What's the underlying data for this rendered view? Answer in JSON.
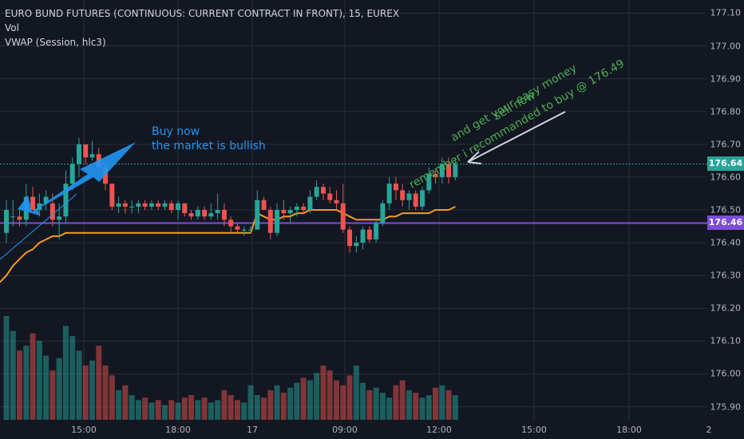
{
  "legend": {
    "symbol": "EURO BUND FUTURES (CONTINUOUS: CURRENT CONTRACT IN FRONT), 15, EUREX",
    "vol": "Vol",
    "vwap": "VWAP (Session, hlc3)"
  },
  "price_axis": {
    "ticks": [
      "177.10",
      "177.00",
      "176.90",
      "176.80",
      "176.70",
      "176.60",
      "176.50",
      "176.40",
      "176.30",
      "176.20",
      "176.10",
      "176.00",
      "175.90"
    ],
    "current_price_label": "176.64",
    "horizontal_line_label": "176.46"
  },
  "time_axis": {
    "ticks": [
      "15:00",
      "18:00",
      "17",
      "09:00",
      "12:00",
      "15:00",
      "18:00",
      "2"
    ]
  },
  "annotations": {
    "buy_line1": "Buy now",
    "buy_line2": "the market is bullish",
    "sell_line1": "sell now",
    "sell_line2": "and get your easy money",
    "sell_line3": "remember i recommanded to buy @ 176.49"
  },
  "colors": {
    "background": "#131722",
    "up": "#26a69a",
    "down": "#ef5350",
    "vwap": "#f59a23",
    "hline": "#7b4dd8",
    "current_price": "#26a69a",
    "annotation_blue": "#2196f3",
    "annotation_green": "#4caf50",
    "arrow_white": "#d1d4dc"
  },
  "chart_data": {
    "type": "candlestick",
    "title": "EURO BUND FUTURES (CONTINUOUS: CURRENT CONTRACT IN FRONT), 15, EUREX",
    "ylim": [
      175.86,
      177.14
    ],
    "horizontal_line": 176.46,
    "last_price": 176.64,
    "candles": [
      {
        "o": 176.43,
        "h": 176.53,
        "l": 176.4,
        "c": 176.5
      },
      {
        "o": 176.48,
        "h": 176.53,
        "l": 176.45,
        "c": 176.48
      },
      {
        "o": 176.48,
        "h": 176.5,
        "l": 176.45,
        "c": 176.47
      },
      {
        "o": 176.47,
        "h": 176.58,
        "l": 176.45,
        "c": 176.54
      },
      {
        "o": 176.54,
        "h": 176.57,
        "l": 176.5,
        "c": 176.5
      },
      {
        "o": 176.5,
        "h": 176.55,
        "l": 176.48,
        "c": 176.52
      },
      {
        "o": 176.52,
        "h": 176.56,
        "l": 176.5,
        "c": 176.54
      },
      {
        "o": 176.52,
        "h": 176.55,
        "l": 176.45,
        "c": 176.47
      },
      {
        "o": 176.47,
        "h": 176.52,
        "l": 176.41,
        "c": 176.48
      },
      {
        "o": 176.48,
        "h": 176.62,
        "l": 176.46,
        "c": 176.58
      },
      {
        "o": 176.58,
        "h": 176.66,
        "l": 176.56,
        "c": 176.64
      },
      {
        "o": 176.64,
        "h": 176.72,
        "l": 176.6,
        "c": 176.7
      },
      {
        "o": 176.7,
        "h": 176.7,
        "l": 176.64,
        "c": 176.66
      },
      {
        "o": 176.66,
        "h": 176.71,
        "l": 176.65,
        "c": 176.67
      },
      {
        "o": 176.67,
        "h": 176.69,
        "l": 176.62,
        "c": 176.63
      },
      {
        "o": 176.63,
        "h": 176.64,
        "l": 176.56,
        "c": 176.58
      },
      {
        "o": 176.58,
        "h": 176.58,
        "l": 176.5,
        "c": 176.51
      },
      {
        "o": 176.51,
        "h": 176.54,
        "l": 176.49,
        "c": 176.52
      },
      {
        "o": 176.52,
        "h": 176.53,
        "l": 176.49,
        "c": 176.51
      },
      {
        "o": 176.51,
        "h": 176.53,
        "l": 176.49,
        "c": 176.51
      },
      {
        "o": 176.51,
        "h": 176.53,
        "l": 176.49,
        "c": 176.52
      },
      {
        "o": 176.52,
        "h": 176.53,
        "l": 176.5,
        "c": 176.51
      },
      {
        "o": 176.51,
        "h": 176.53,
        "l": 176.5,
        "c": 176.52
      },
      {
        "o": 176.52,
        "h": 176.53,
        "l": 176.5,
        "c": 176.51
      },
      {
        "o": 176.51,
        "h": 176.53,
        "l": 176.5,
        "c": 176.52
      },
      {
        "o": 176.52,
        "h": 176.53,
        "l": 176.49,
        "c": 176.5
      },
      {
        "o": 176.5,
        "h": 176.53,
        "l": 176.47,
        "c": 176.52
      },
      {
        "o": 176.52,
        "h": 176.52,
        "l": 176.48,
        "c": 176.49
      },
      {
        "o": 176.49,
        "h": 176.5,
        "l": 176.47,
        "c": 176.48
      },
      {
        "o": 176.48,
        "h": 176.51,
        "l": 176.47,
        "c": 176.5
      },
      {
        "o": 176.5,
        "h": 176.51,
        "l": 176.47,
        "c": 176.48
      },
      {
        "o": 176.48,
        "h": 176.52,
        "l": 176.47,
        "c": 176.49
      },
      {
        "o": 176.49,
        "h": 176.55,
        "l": 176.47,
        "c": 176.5
      },
      {
        "o": 176.5,
        "h": 176.52,
        "l": 176.45,
        "c": 176.47
      },
      {
        "o": 176.47,
        "h": 176.48,
        "l": 176.43,
        "c": 176.45
      },
      {
        "o": 176.45,
        "h": 176.46,
        "l": 176.43,
        "c": 176.44
      },
      {
        "o": 176.44,
        "h": 176.45,
        "l": 176.42,
        "c": 176.44
      },
      {
        "o": 176.44,
        "h": 176.45,
        "l": 176.43,
        "c": 176.44
      },
      {
        "o": 176.44,
        "h": 176.56,
        "l": 176.44,
        "c": 176.53
      },
      {
        "o": 176.53,
        "h": 176.54,
        "l": 176.5,
        "c": 176.5
      },
      {
        "o": 176.5,
        "h": 176.51,
        "l": 176.41,
        "c": 176.43
      },
      {
        "o": 176.43,
        "h": 176.52,
        "l": 176.42,
        "c": 176.5
      },
      {
        "o": 176.5,
        "h": 176.53,
        "l": 176.47,
        "c": 176.49
      },
      {
        "o": 176.49,
        "h": 176.51,
        "l": 176.46,
        "c": 176.5
      },
      {
        "o": 176.5,
        "h": 176.52,
        "l": 176.48,
        "c": 176.51
      },
      {
        "o": 176.51,
        "h": 176.52,
        "l": 176.49,
        "c": 176.5
      },
      {
        "o": 176.5,
        "h": 176.56,
        "l": 176.49,
        "c": 176.54
      },
      {
        "o": 176.54,
        "h": 176.59,
        "l": 176.53,
        "c": 176.57
      },
      {
        "o": 176.57,
        "h": 176.58,
        "l": 176.53,
        "c": 176.55
      },
      {
        "o": 176.55,
        "h": 176.57,
        "l": 176.52,
        "c": 176.53
      },
      {
        "o": 176.53,
        "h": 176.56,
        "l": 176.5,
        "c": 176.52
      },
      {
        "o": 176.52,
        "h": 176.58,
        "l": 176.43,
        "c": 176.44
      },
      {
        "o": 176.44,
        "h": 176.45,
        "l": 176.37,
        "c": 176.39
      },
      {
        "o": 176.39,
        "h": 176.42,
        "l": 176.37,
        "c": 176.4
      },
      {
        "o": 176.4,
        "h": 176.45,
        "l": 176.38,
        "c": 176.44
      },
      {
        "o": 176.44,
        "h": 176.45,
        "l": 176.4,
        "c": 176.41
      },
      {
        "o": 176.41,
        "h": 176.47,
        "l": 176.4,
        "c": 176.46
      },
      {
        "o": 176.46,
        "h": 176.53,
        "l": 176.45,
        "c": 176.52
      },
      {
        "o": 176.52,
        "h": 176.6,
        "l": 176.5,
        "c": 176.58
      },
      {
        "o": 176.58,
        "h": 176.6,
        "l": 176.53,
        "c": 176.56
      },
      {
        "o": 176.56,
        "h": 176.58,
        "l": 176.51,
        "c": 176.53
      },
      {
        "o": 176.53,
        "h": 176.56,
        "l": 176.5,
        "c": 176.55
      },
      {
        "o": 176.55,
        "h": 176.56,
        "l": 176.5,
        "c": 176.51
      },
      {
        "o": 176.51,
        "h": 176.57,
        "l": 176.5,
        "c": 176.56
      },
      {
        "o": 176.56,
        "h": 176.63,
        "l": 176.55,
        "c": 176.61
      },
      {
        "o": 176.61,
        "h": 176.62,
        "l": 176.58,
        "c": 176.6
      },
      {
        "o": 176.6,
        "h": 176.66,
        "l": 176.58,
        "c": 176.64
      },
      {
        "o": 176.64,
        "h": 176.66,
        "l": 176.58,
        "c": 176.6
      },
      {
        "o": 176.6,
        "h": 176.66,
        "l": 176.59,
        "c": 176.64
      }
    ],
    "volume": [
      42,
      36,
      28,
      30,
      35,
      32,
      26,
      20,
      25,
      38,
      34,
      28,
      22,
      24,
      30,
      22,
      18,
      12,
      14,
      10,
      8,
      9,
      7,
      8,
      6,
      8,
      7,
      9,
      10,
      8,
      9,
      7,
      8,
      12,
      10,
      8,
      7,
      14,
      10,
      9,
      12,
      14,
      11,
      13,
      15,
      17,
      16,
      19,
      22,
      20,
      16,
      14,
      18,
      22,
      15,
      12,
      13,
      11,
      9,
      14,
      16,
      12,
      11,
      9,
      10,
      13,
      14,
      12,
      10
    ],
    "vwap": [
      176.3,
      176.33,
      176.35,
      176.37,
      176.38,
      176.4,
      176.41,
      176.42,
      176.42,
      176.43,
      176.43,
      176.43,
      176.43,
      176.43,
      176.43,
      176.43,
      176.43,
      176.43,
      176.43,
      176.43,
      176.43,
      176.43,
      176.43,
      176.43,
      176.43,
      176.43,
      176.43,
      176.43,
      176.43,
      176.43,
      176.43,
      176.43,
      176.43,
      176.43,
      176.43,
      176.43,
      176.43,
      176.43,
      176.49,
      176.48,
      176.47,
      176.47,
      176.48,
      176.48,
      176.49,
      176.49,
      176.5,
      176.5,
      176.5,
      176.5,
      176.5,
      176.49,
      176.48,
      176.47,
      176.47,
      176.47,
      176.47,
      176.47,
      176.48,
      176.48,
      176.49,
      176.49,
      176.49,
      176.49,
      176.49,
      176.5,
      176.5,
      176.5,
      176.51
    ]
  }
}
